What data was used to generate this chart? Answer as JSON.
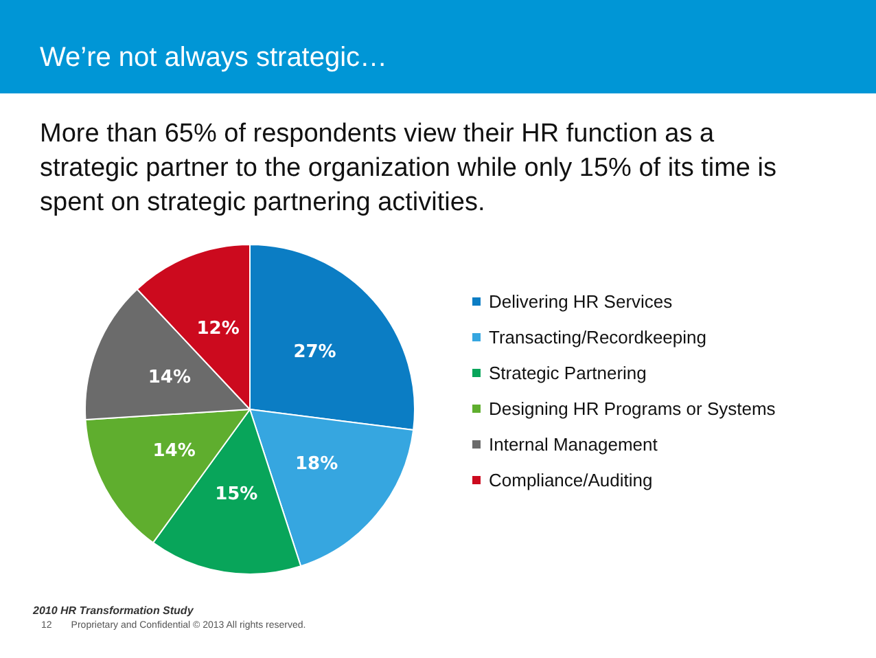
{
  "chart_data": {
    "type": "pie",
    "title": "We’re not always strategic…",
    "subtitle": "More than 65% of respondents view their HR function as a strategic partner to the organization while only 15% of its time is spent on strategic partnering activities.",
    "categories": [
      "Delivering HR Services",
      "Transacting/Recordkeeping",
      "Strategic Partnering",
      "Designing HR Programs or Systems",
      "Internal Management",
      "Compliance/Auditing"
    ],
    "values": [
      27,
      18,
      15,
      14,
      14,
      12
    ],
    "colors": [
      "#0b7dc4",
      "#36a6e0",
      "#08a55a",
      "#5fae2e",
      "#6b6b6b",
      "#cc0a1e"
    ],
    "value_labels": [
      "27%",
      "18%",
      "15%",
      "14%",
      "14%",
      "12%"
    ],
    "legend": "right",
    "annotations": [
      "2010 HR Transformation Study",
      "12",
      "Proprietary and Confidential   © 2013   All rights reserved."
    ]
  }
}
